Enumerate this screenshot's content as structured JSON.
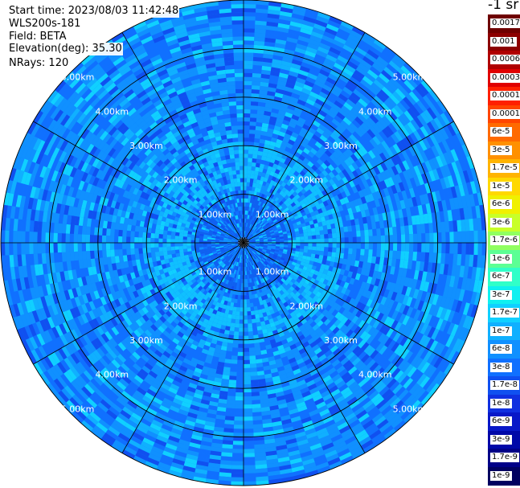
{
  "info": {
    "start_time": "Start time: 2023/08/03 11:42:48",
    "instrument": "WLS200s-181",
    "field": "Field: BETA",
    "elevation": "Elevation(deg): 35.30",
    "nrays": "NRays: 120"
  },
  "colorbar": {
    "title": "-1 sr",
    "labels": [
      "0.0017",
      "0.001",
      "0.0006",
      "0.0003",
      "0.00017",
      "0.0001",
      "6e-5",
      "3e-5",
      "1.7e-5",
      "1e-5",
      "6e-6",
      "3e-6",
      "1.7e-6",
      "1e-6",
      "6e-7",
      "3e-7",
      "1.7e-7",
      "1e-7",
      "6e-8",
      "3e-8",
      "1.7e-8",
      "1e-8",
      "6e-9",
      "3e-9",
      "1.7e-9",
      "1e-9"
    ],
    "colors": [
      "#6e0000",
      "#8c0000",
      "#b00000",
      "#e00000",
      "#ff2000",
      "#ff4500",
      "#ff6a00",
      "#ff9000",
      "#ffb400",
      "#ffd800",
      "#f0f000",
      "#c8ff28",
      "#90ff60",
      "#5cff94",
      "#30ffc8",
      "#10f0f0",
      "#10d0ff",
      "#10b0ff",
      "#1090ff",
      "#1070ff",
      "#1050f0",
      "#1030e0",
      "#0818c8",
      "#0008a8",
      "#000088",
      "#000060"
    ]
  },
  "chart_data": {
    "type": "heatmap",
    "projection": "polar-ppi",
    "field": "BETA",
    "units": "-1 sr",
    "range_rings_km": [
      1,
      2,
      3,
      4,
      5
    ],
    "ring_labels": [
      "1.00km",
      "2.00km",
      "3.00km",
      "4.00km",
      "5.00km"
    ],
    "max_range_km": 5.0,
    "spokes_deg": [
      0,
      30,
      60,
      90,
      120,
      150,
      180,
      210,
      240,
      270,
      300,
      330
    ],
    "color_scale": {
      "min": "1e-9",
      "max": "0.0017",
      "scale": "log"
    },
    "typical_value_range": [
      "1e-8",
      "1.7e-7"
    ]
  }
}
